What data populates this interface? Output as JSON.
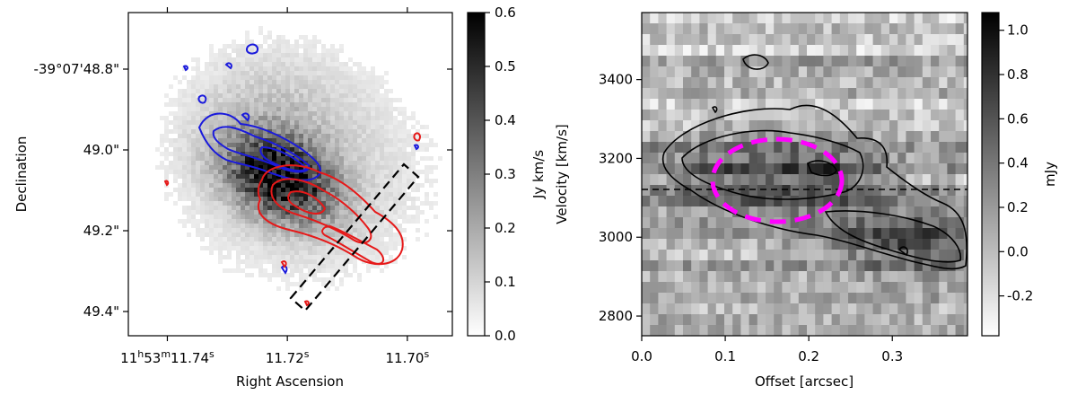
{
  "chart_data": [
    {
      "type": "heatmap",
      "name": "moment-0 map",
      "xlabel": "Right Ascension",
      "ylabel": "Declination",
      "x_ticks": [
        {
          "label": "11h53m11.74s",
          "value": 11.74
        },
        {
          "label": "11.72s",
          "value": 11.72
        },
        {
          "label": "11.70s",
          "value": 11.7
        }
      ],
      "x_range_s": [
        11.7465,
        11.6925
      ],
      "y_ticks": [
        "-39°07'48.8\"",
        "49.0\"",
        "49.2\"",
        "49.4\""
      ],
      "y_tick_values_arcsec": [
        48.8,
        49.0,
        49.2,
        49.4
      ],
      "y_range_arcsec": [
        48.66,
        49.46
      ],
      "colorbar": {
        "label": "Jy km/s",
        "min": 0.0,
        "max": 0.6,
        "ticks": [
          0.0,
          0.1,
          0.2,
          0.3,
          0.4,
          0.5,
          0.6
        ],
        "tick_labels": [
          "0.0",
          "0.1",
          "0.2",
          "0.3",
          "0.4",
          "0.5",
          "0.6"
        ]
      },
      "emission_peak": {
        "ra_s": 11.7212,
        "dec_arcsec": 49.07,
        "value": 0.6
      },
      "contours": [
        {
          "name": "blueshifted",
          "color": "#1a1adc"
        },
        {
          "name": "redshifted",
          "color": "#e61919"
        }
      ],
      "slit": {
        "style": "dashed black rectangle",
        "from": {
          "ra_s": 11.7182,
          "dec_arcsec": 49.39
        },
        "to": {
          "ra_s": 11.6982,
          "dec_arcsec": 49.09
        }
      }
    },
    {
      "type": "heatmap",
      "name": "position-velocity diagram",
      "xlabel": "Offset [arcsec]",
      "ylabel": "Velocity [km/s]",
      "x_ticks": [
        0.0,
        0.1,
        0.2,
        0.3
      ],
      "x_tick_labels": [
        "0.0",
        "0.1",
        "0.2",
        "0.3"
      ],
      "x_range": [
        0.0,
        0.39
      ],
      "y_ticks": [
        2800,
        3000,
        3200,
        3400
      ],
      "y_tick_labels": [
        "2800",
        "3000",
        "3200",
        "3400"
      ],
      "y_range": [
        2750,
        3570
      ],
      "colorbar": {
        "label": "mJy",
        "min": -0.38,
        "max": 1.08,
        "ticks": [
          -0.2,
          0.0,
          0.2,
          0.4,
          0.6,
          0.8,
          1.0
        ],
        "tick_labels": [
          "-0.2",
          "0.0",
          "0.2",
          "0.4",
          "0.6",
          "0.8",
          "1.0"
        ]
      },
      "systemic_velocity_kms": 3115,
      "ellipse": {
        "center_offset": 0.165,
        "center_velocity": 3150,
        "half_width_offset": 0.08,
        "half_height_velocity": 75,
        "color": "#ff00ff",
        "style": "dashed"
      },
      "contour_color": "#000000"
    }
  ]
}
